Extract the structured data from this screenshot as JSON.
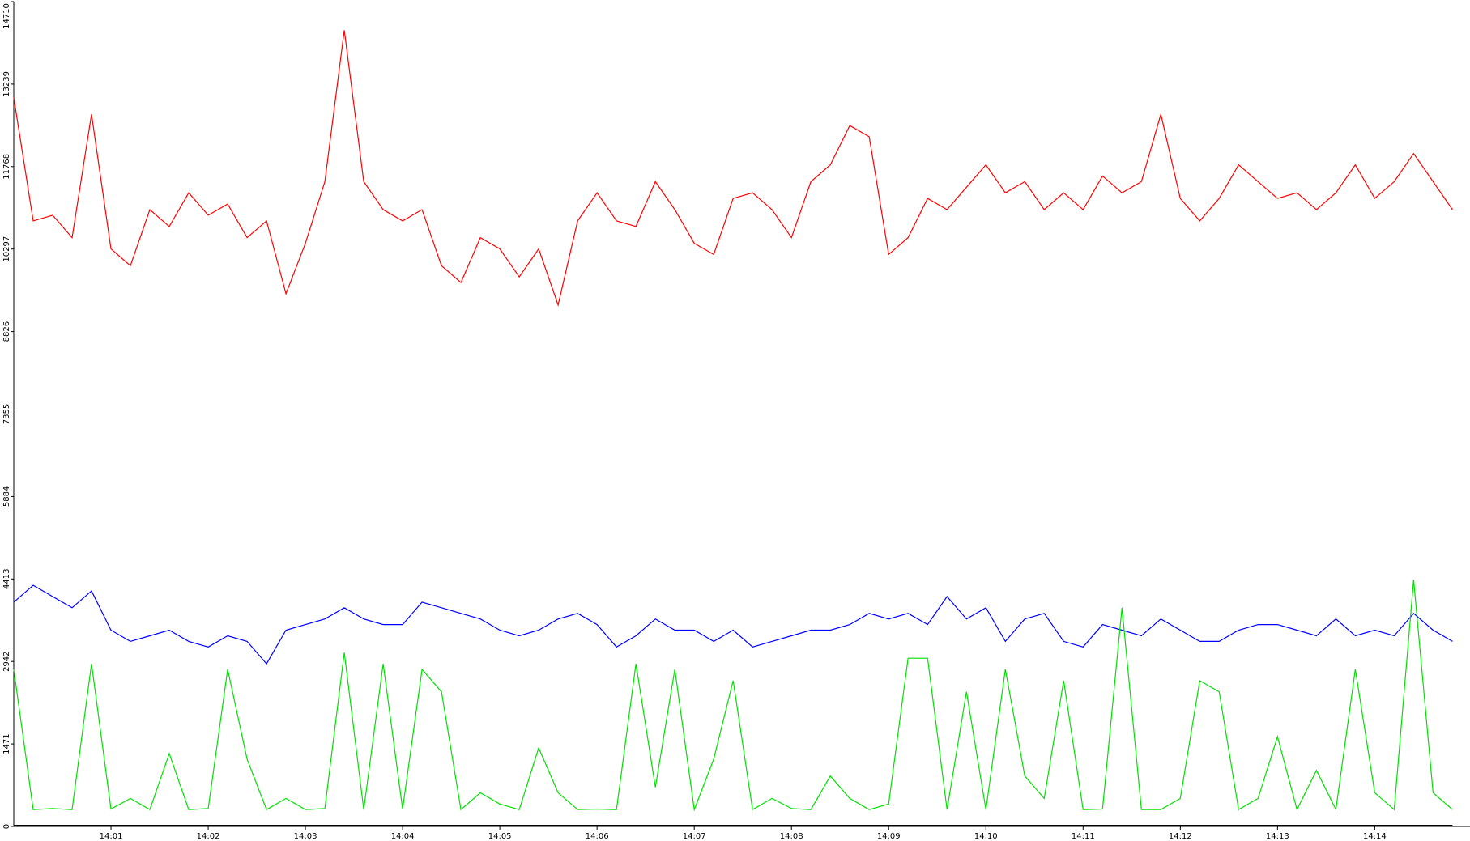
{
  "chart_data": {
    "type": "line",
    "x": [
      0,
      0.2,
      0.4,
      0.6,
      0.8,
      1,
      1.2,
      1.4,
      1.6,
      1.8,
      2,
      2.2,
      2.4,
      2.6,
      2.8,
      3,
      3.2,
      3.4,
      3.6,
      3.8,
      4,
      4.2,
      4.4,
      4.6,
      4.8,
      5,
      5.2,
      5.4,
      5.6,
      5.8,
      6,
      6.2,
      6.4,
      6.6,
      6.8,
      7,
      7.2,
      7.4,
      7.6,
      7.8,
      8,
      8.2,
      8.4,
      8.6,
      8.8,
      9,
      9.2,
      9.4,
      9.6,
      9.8,
      10,
      10.2,
      10.4,
      10.6,
      10.8,
      11,
      11.2,
      11.4,
      11.6,
      11.8,
      12,
      12.2,
      12.4,
      12.6,
      12.8,
      13,
      13.2,
      13.4,
      13.6,
      13.8,
      14,
      14.2,
      14.4,
      14.6,
      14.8
    ],
    "series": [
      {
        "color": "#ff0000",
        "values": [
          13000,
          10800,
          10900,
          10500,
          12700,
          10300,
          10000,
          11000,
          10700,
          11300,
          10900,
          11100,
          10500,
          10800,
          9500,
          10400,
          11500,
          14200,
          11500,
          11000,
          10800,
          11000,
          10000,
          9700,
          10500,
          10300,
          9800,
          10300,
          9300,
          10800,
          11300,
          10800,
          10700,
          11500,
          11000,
          10400,
          10200,
          11200,
          11300,
          11000,
          10500,
          11500,
          11800,
          12500,
          12300,
          10200,
          10500,
          11200,
          11000,
          11400,
          11800,
          11300,
          11500,
          11000,
          11300,
          11000,
          11600,
          11300,
          11500,
          12700,
          11200,
          10800,
          11200,
          11800,
          11500,
          11200,
          11300,
          11000,
          11300,
          11800,
          11200,
          11500,
          12000,
          11500,
          11000
        ]
      },
      {
        "color": "#0000ff",
        "values": [
          4000,
          4300,
          4100,
          3900,
          4200,
          3500,
          3300,
          3400,
          3500,
          3300,
          3200,
          3400,
          3300,
          2900,
          3500,
          3600,
          3700,
          3900,
          3700,
          3600,
          3600,
          4000,
          3900,
          3800,
          3700,
          3500,
          3400,
          3500,
          3700,
          3800,
          3600,
          3200,
          3400,
          3700,
          3500,
          3500,
          3300,
          3500,
          3200,
          3300,
          3400,
          3500,
          3500,
          3600,
          3800,
          3700,
          3800,
          3600,
          4100,
          3700,
          3900,
          3300,
          3700,
          3800,
          3300,
          3200,
          3600,
          3500,
          3400,
          3700,
          3500,
          3300,
          3300,
          3500,
          3600,
          3600,
          3500,
          3400,
          3700,
          3400,
          3500,
          3400,
          3800,
          3500,
          3300
        ]
      },
      {
        "color": "#00e000",
        "values": [
          2800,
          300,
          320,
          300,
          2900,
          310,
          500,
          300,
          1300,
          300,
          320,
          2800,
          1200,
          300,
          500,
          300,
          320,
          3100,
          300,
          2900,
          310,
          2800,
          2400,
          300,
          600,
          400,
          300,
          1400,
          600,
          300,
          310,
          300,
          2900,
          700,
          2800,
          300,
          1200,
          2600,
          300,
          500,
          320,
          300,
          900,
          500,
          300,
          400,
          3000,
          3000,
          300,
          2400,
          300,
          2800,
          900,
          500,
          2600,
          300,
          310,
          3900,
          300,
          300,
          500,
          2600,
          2400,
          300,
          500,
          1600,
          300,
          1000,
          300,
          2800,
          600,
          300,
          4400,
          600,
          300
        ]
      },
      {
        "color": "#000000",
        "values": [
          20,
          20,
          20,
          20,
          20,
          20,
          20,
          20,
          20,
          20,
          20,
          20,
          20,
          20,
          20,
          20,
          20,
          20,
          20,
          20,
          20,
          20,
          20,
          20,
          20,
          20,
          20,
          20,
          20,
          20,
          20,
          20,
          20,
          20,
          20,
          20,
          20,
          20,
          20,
          20,
          20,
          20,
          20,
          20,
          20,
          20,
          20,
          20,
          20,
          20,
          20,
          20,
          20,
          20,
          20,
          20,
          20,
          20,
          20,
          20,
          20,
          20,
          20,
          20,
          20,
          20,
          20,
          20,
          20,
          20,
          20,
          20,
          20,
          20,
          20
        ]
      }
    ],
    "xlim": [
      0,
      14.98
    ],
    "xticks": [
      {
        "value": 1,
        "label": "14:01"
      },
      {
        "value": 2,
        "label": "14:02"
      },
      {
        "value": 3,
        "label": "14:03"
      },
      {
        "value": 4,
        "label": "14:04"
      },
      {
        "value": 5,
        "label": "14:05"
      },
      {
        "value": 6,
        "label": "14:06"
      },
      {
        "value": 7,
        "label": "14:07"
      },
      {
        "value": 8,
        "label": "14:08"
      },
      {
        "value": 9,
        "label": "14:09"
      },
      {
        "value": 10,
        "label": "14:10"
      },
      {
        "value": 11,
        "label": "14:11"
      },
      {
        "value": 12,
        "label": "14:12"
      },
      {
        "value": 13,
        "label": "14:13"
      },
      {
        "value": 14,
        "label": "14:14"
      }
    ],
    "ylim": [
      0,
      14710
    ],
    "yticks": [
      0,
      1471,
      2942,
      4413,
      5884,
      7355,
      8826,
      10297,
      11768,
      13239,
      14710
    ],
    "grid": false
  }
}
